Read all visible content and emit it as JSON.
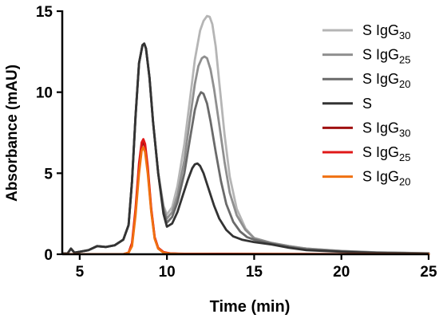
{
  "chart_data": {
    "type": "line",
    "xlabel": "Time (min)",
    "ylabel": "Absorbance (mAU)",
    "xlim": [
      4,
      25
    ],
    "ylim": [
      0,
      15
    ],
    "xticks": [
      5,
      10,
      15,
      20,
      25
    ],
    "yticks": [
      0,
      5,
      10,
      15
    ],
    "grid": false,
    "legend_position": "top-right",
    "series": [
      {
        "name": "S IgG30",
        "legend_main": "S IgG",
        "legend_sub": "30",
        "color": "#b5b5b5",
        "x": [
          4,
          4.3,
          4.5,
          4.7,
          5,
          5.5,
          6,
          6.5,
          7,
          7.5,
          7.8,
          8,
          8.2,
          8.4,
          8.6,
          8.7,
          8.8,
          9,
          9.2,
          9.5,
          9.8,
          10,
          10.3,
          10.6,
          11,
          11.3,
          11.6,
          11.9,
          12.1,
          12.3,
          12.45,
          12.6,
          12.8,
          13,
          13.3,
          13.6,
          14,
          14.5,
          15,
          16,
          17,
          18,
          20,
          22,
          24,
          25
        ],
        "y": [
          0.05,
          0.05,
          0.35,
          0.1,
          0.15,
          0.25,
          0.5,
          0.45,
          0.55,
          0.9,
          1.8,
          4.5,
          8.5,
          11.8,
          12.9,
          13.0,
          12.7,
          10.9,
          8.2,
          5.0,
          3.0,
          2.45,
          2.9,
          4.2,
          6.8,
          9.4,
          12.0,
          13.8,
          14.4,
          14.7,
          14.65,
          14.2,
          12.8,
          10.6,
          7.4,
          4.8,
          2.8,
          1.6,
          1.0,
          0.7,
          0.5,
          0.35,
          0.2,
          0.12,
          0.08,
          0.06
        ]
      },
      {
        "name": "S IgG25",
        "legend_main": "S IgG",
        "legend_sub": "25",
        "color": "#8f8f8f",
        "x": [
          4,
          4.3,
          4.5,
          4.7,
          5,
          5.5,
          6,
          6.5,
          7,
          7.5,
          7.8,
          8,
          8.2,
          8.4,
          8.6,
          8.7,
          8.8,
          9,
          9.2,
          9.5,
          9.8,
          10,
          10.3,
          10.6,
          11,
          11.3,
          11.6,
          11.8,
          12,
          12.15,
          12.3,
          12.5,
          12.7,
          13,
          13.3,
          13.6,
          14,
          14.5,
          15,
          16,
          17,
          18,
          20,
          22,
          24,
          25
        ],
        "y": [
          0.05,
          0.05,
          0.35,
          0.1,
          0.15,
          0.25,
          0.5,
          0.45,
          0.55,
          0.9,
          1.8,
          4.5,
          8.5,
          11.8,
          12.9,
          13.0,
          12.7,
          10.9,
          8.2,
          5.0,
          2.9,
          2.2,
          2.6,
          3.6,
          5.8,
          8.2,
          10.5,
          11.6,
          12.1,
          12.2,
          12.1,
          11.4,
          10.2,
          8.0,
          5.7,
          3.8,
          2.4,
          1.5,
          1.0,
          0.7,
          0.5,
          0.35,
          0.2,
          0.12,
          0.08,
          0.06
        ]
      },
      {
        "name": "S IgG20",
        "legend_main": "S IgG",
        "legend_sub": "20",
        "color": "#6a6a6a",
        "x": [
          4,
          4.3,
          4.5,
          4.7,
          5,
          5.5,
          6,
          6.5,
          7,
          7.5,
          7.8,
          8,
          8.2,
          8.4,
          8.6,
          8.7,
          8.8,
          9,
          9.2,
          9.5,
          9.8,
          10,
          10.3,
          10.6,
          11,
          11.3,
          11.6,
          11.8,
          11.95,
          12.1,
          12.3,
          12.5,
          12.8,
          13.1,
          13.4,
          13.8,
          14.2,
          14.6,
          15,
          16,
          17,
          18,
          20,
          22,
          24,
          25
        ],
        "y": [
          0.05,
          0.05,
          0.35,
          0.1,
          0.15,
          0.25,
          0.5,
          0.45,
          0.55,
          0.9,
          1.8,
          4.5,
          8.5,
          11.8,
          12.9,
          13.0,
          12.7,
          10.9,
          8.2,
          5.0,
          2.7,
          1.95,
          2.3,
          3.2,
          5.0,
          7.0,
          8.9,
          9.7,
          10.0,
          9.9,
          9.3,
          8.2,
          6.3,
          4.5,
          3.1,
          2.0,
          1.4,
          1.05,
          0.9,
          0.65,
          0.45,
          0.3,
          0.18,
          0.1,
          0.07,
          0.05
        ]
      },
      {
        "name": "S",
        "legend_main": "S",
        "legend_sub": "",
        "color": "#333333",
        "x": [
          4,
          4.3,
          4.5,
          4.7,
          5,
          5.5,
          6,
          6.5,
          7,
          7.5,
          7.8,
          8,
          8.2,
          8.4,
          8.6,
          8.7,
          8.8,
          9,
          9.2,
          9.5,
          9.8,
          10,
          10.3,
          10.6,
          10.9,
          11.2,
          11.45,
          11.6,
          11.75,
          11.9,
          12.1,
          12.4,
          12.7,
          13,
          13.4,
          13.8,
          14.3,
          15,
          16,
          17,
          18,
          20,
          22,
          24,
          25
        ],
        "y": [
          0.05,
          0.05,
          0.35,
          0.1,
          0.15,
          0.25,
          0.5,
          0.45,
          0.55,
          0.9,
          1.8,
          4.5,
          8.5,
          11.8,
          12.9,
          13.0,
          12.7,
          10.9,
          8.2,
          5.0,
          2.5,
          1.7,
          1.9,
          2.6,
          3.6,
          4.6,
          5.3,
          5.55,
          5.6,
          5.45,
          5.0,
          4.0,
          3.0,
          2.2,
          1.5,
          1.1,
          0.9,
          0.75,
          0.6,
          0.4,
          0.25,
          0.15,
          0.08,
          0.05,
          0.03
        ]
      },
      {
        "name": "S IgG30 (red)",
        "legend_main": "S IgG",
        "legend_sub": "30",
        "color": "#a01010",
        "x": [
          4,
          7.5,
          7.8,
          8,
          8.2,
          8.4,
          8.55,
          8.65,
          8.75,
          8.9,
          9.1,
          9.3,
          9.5,
          9.8,
          10.2,
          11,
          13,
          16,
          20,
          25
        ],
        "y": [
          0,
          0,
          0.1,
          0.6,
          2.6,
          5.3,
          6.7,
          6.9,
          6.6,
          5.2,
          2.7,
          1.0,
          0.35,
          0.12,
          0.05,
          0.02,
          0.02,
          0.01,
          0,
          0
        ]
      },
      {
        "name": "S IgG25 (red)",
        "legend_main": "S IgG",
        "legend_sub": "25",
        "color": "#e01818",
        "x": [
          4,
          7.5,
          7.8,
          8,
          8.2,
          8.4,
          8.55,
          8.65,
          8.75,
          8.9,
          9.1,
          9.3,
          9.5,
          9.8,
          10.2,
          11,
          13,
          16,
          20,
          25
        ],
        "y": [
          0,
          0,
          0.1,
          0.7,
          2.8,
          5.6,
          6.9,
          7.1,
          6.8,
          5.4,
          2.8,
          1.05,
          0.4,
          0.14,
          0.05,
          0.03,
          0.03,
          0.02,
          0.01,
          0
        ]
      },
      {
        "name": "S IgG20 (orange)",
        "legend_main": "S IgG",
        "legend_sub": "20",
        "color": "#f07010",
        "x": [
          4,
          7.5,
          7.8,
          8,
          8.2,
          8.4,
          8.55,
          8.65,
          8.75,
          8.9,
          9.1,
          9.3,
          9.5,
          9.8,
          10.2,
          11,
          13,
          16,
          20,
          25
        ],
        "y": [
          0,
          0,
          0.1,
          0.5,
          2.4,
          5.0,
          6.4,
          6.6,
          6.3,
          5.0,
          2.6,
          0.95,
          0.35,
          0.1,
          0.04,
          0.02,
          0.01,
          0.01,
          0,
          0
        ]
      }
    ]
  }
}
